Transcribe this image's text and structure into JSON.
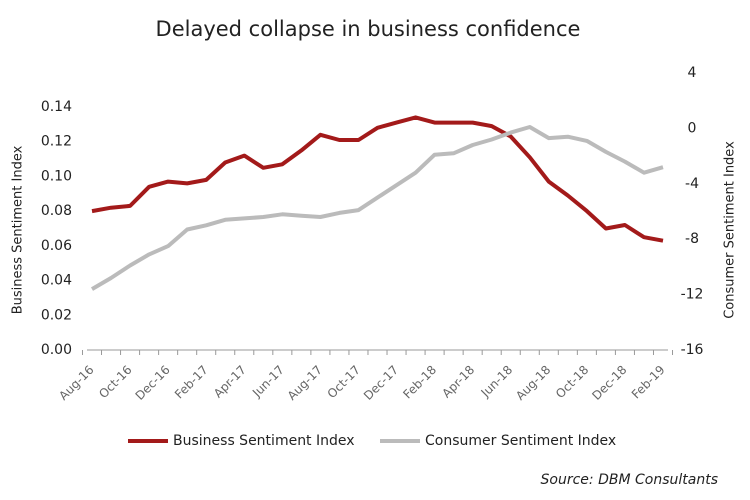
{
  "chart_data": {
    "type": "line",
    "title": "Delayed collapse in business confidence",
    "ylabel": "Business Sentiment Index",
    "y2label": "Consumer Sentiment Index",
    "source": "Source: DBM Consultants",
    "categories": [
      "Aug-16",
      null,
      "Oct-16",
      null,
      "Dec-16",
      null,
      "Feb-17",
      null,
      "Apr-17",
      null,
      "Jun-17",
      null,
      "Aug-17",
      null,
      "Oct-17",
      null,
      "Dec-17",
      null,
      "Feb-18",
      null,
      "Apr-18",
      null,
      "Jun-18",
      null,
      "Aug-18",
      null,
      "Oct-18",
      null,
      "Dec-18",
      null,
      "Feb-19"
    ],
    "series": [
      {
        "name": "Business Sentiment Index",
        "color": "#a31a1a",
        "values": [
          0.08,
          0.082,
          0.083,
          0.094,
          0.097,
          0.096,
          0.098,
          0.108,
          0.112,
          0.105,
          0.107,
          0.115,
          0.124,
          0.121,
          0.121,
          0.128,
          0.131,
          0.134,
          0.131,
          0.131,
          0.131,
          0.129,
          0.123,
          0.111,
          0.097,
          0.089,
          0.08,
          0.07,
          0.072,
          0.065,
          0.063
        ]
      },
      {
        "name": "Consumer Sentiment Index",
        "color": "#bbbbbb",
        "axis": "y2",
        "values": [
          -11.6,
          -10.8,
          -9.9,
          -9.1,
          -8.5,
          -7.3,
          -7.0,
          -6.6,
          -6.5,
          -6.4,
          -6.2,
          -6.3,
          -6.4,
          -6.1,
          -5.9,
          -5.0,
          -4.1,
          -3.2,
          -1.9,
          -1.8,
          -1.2,
          -0.8,
          -0.3,
          0.1,
          -0.7,
          -0.6,
          -0.9,
          -1.7,
          -2.4,
          -3.2,
          -2.8
        ]
      }
    ],
    "ylim": [
      0,
      0.14
    ],
    "yticks": [
      {
        "value": 0,
        "label": "0.00"
      },
      {
        "value": 0.02,
        "label": "0.02"
      },
      {
        "value": 0.04,
        "label": "0.04"
      },
      {
        "value": 0.06,
        "label": "0.06"
      },
      {
        "value": 0.08,
        "label": "0.08"
      },
      {
        "value": 0.1,
        "label": "0.10"
      },
      {
        "value": 0.12,
        "label": "0.12"
      },
      {
        "value": 0.14,
        "label": "0.14"
      }
    ],
    "y2lim": [
      -16,
      4
    ],
    "y2ticks": [
      -16,
      -12,
      -8,
      -4,
      0,
      4
    ],
    "legend": "bottom"
  }
}
